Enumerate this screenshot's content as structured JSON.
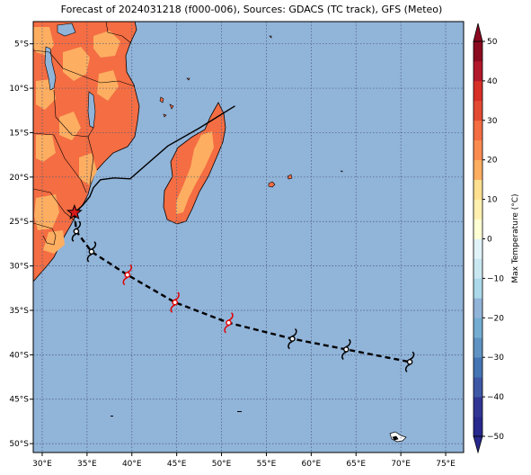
{
  "title": "Forecast of 2024031218 (f000-006), Sources: GDACS (TC track), GFS (Meteo)",
  "map": {
    "lon_range": [
      29,
      77
    ],
    "lat_range": [
      -51,
      -2.5
    ],
    "lon_ticks": [
      {
        "value": 30,
        "label": "30°E"
      },
      {
        "value": 35,
        "label": "35°E"
      },
      {
        "value": 40,
        "label": "40°E"
      },
      {
        "value": 45,
        "label": "45°E"
      },
      {
        "value": 50,
        "label": "50°E"
      },
      {
        "value": 55,
        "label": "55°E"
      },
      {
        "value": 60,
        "label": "60°E"
      },
      {
        "value": 65,
        "label": "65°E"
      },
      {
        "value": 70,
        "label": "70°E"
      },
      {
        "value": 75,
        "label": "75°E"
      }
    ],
    "lat_ticks": [
      {
        "value": -5,
        "label": "5°S"
      },
      {
        "value": -10,
        "label": "10°S"
      },
      {
        "value": -15,
        "label": "15°S"
      },
      {
        "value": -20,
        "label": "20°S"
      },
      {
        "value": -25,
        "label": "25°S"
      },
      {
        "value": -30,
        "label": "30°S"
      },
      {
        "value": -35,
        "label": "35°S"
      },
      {
        "value": -40,
        "label": "40°S"
      },
      {
        "value": -45,
        "label": "45°S"
      },
      {
        "value": -50,
        "label": "50°S"
      }
    ],
    "grid": "dotted",
    "ocean_color": "#91b4d9",
    "land_color_hot": "#f46d43",
    "land_color_warm": "#fdae61",
    "past_track": [
      [
        51.5,
        -12
      ],
      [
        47.5,
        -14.5
      ],
      [
        44,
        -16.5
      ],
      [
        39.8,
        -20.2
      ],
      [
        38,
        -20.1
      ],
      [
        36.5,
        -20.3
      ],
      [
        35.7,
        -21.2
      ],
      [
        35.3,
        -22.2
      ],
      [
        34.5,
        -23.2
      ],
      [
        33.6,
        -24.0
      ]
    ],
    "current_position": {
      "lon": 33.6,
      "lat": -24.0,
      "marker": "star-icon",
      "color": "#d7191c"
    },
    "forecast_track": [
      {
        "lon": 33.8,
        "lat": -26.1,
        "marker": "cyclone-icon",
        "color": "#000000"
      },
      {
        "lon": 35.5,
        "lat": -28.4,
        "marker": "cyclone-icon",
        "color": "#000000"
      },
      {
        "lon": 39.5,
        "lat": -31.0,
        "marker": "cyclone-icon",
        "color": "#e00000"
      },
      {
        "lon": 44.8,
        "lat": -34.1,
        "marker": "cyclone-icon",
        "color": "#e00000"
      },
      {
        "lon": 50.8,
        "lat": -36.4,
        "marker": "cyclone-icon",
        "color": "#e00000"
      },
      {
        "lon": 57.9,
        "lat": -38.2,
        "marker": "cyclone-icon",
        "color": "#000000"
      },
      {
        "lon": 63.9,
        "lat": -39.4,
        "marker": "cyclone-icon",
        "color": "#000000"
      },
      {
        "lon": 71.0,
        "lat": -40.8,
        "marker": "cyclone-icon",
        "color": "#000000"
      }
    ]
  },
  "colorbar": {
    "label": "Max Temperature (°C)",
    "min": -50,
    "max": 50,
    "ticks": [
      {
        "value": 50,
        "label": "50"
      },
      {
        "value": 40,
        "label": "40"
      },
      {
        "value": 30,
        "label": "30"
      },
      {
        "value": 20,
        "label": "20"
      },
      {
        "value": 10,
        "label": "10"
      },
      {
        "value": 0,
        "label": "0"
      },
      {
        "value": -10,
        "label": "−10"
      },
      {
        "value": -20,
        "label": "−20"
      },
      {
        "value": -30,
        "label": "−30"
      },
      {
        "value": -40,
        "label": "−40"
      },
      {
        "value": -50,
        "label": "−50"
      }
    ],
    "bands": [
      {
        "from": -50,
        "to": -45,
        "color": "#28288f"
      },
      {
        "from": -45,
        "to": -40,
        "color": "#313695"
      },
      {
        "from": -40,
        "to": -35,
        "color": "#3e58a6"
      },
      {
        "from": -35,
        "to": -30,
        "color": "#4575b4"
      },
      {
        "from": -30,
        "to": -25,
        "color": "#5f93c3"
      },
      {
        "from": -25,
        "to": -20,
        "color": "#74add1"
      },
      {
        "from": -20,
        "to": -15,
        "color": "#91b4d9"
      },
      {
        "from": -15,
        "to": -10,
        "color": "#abd9e9"
      },
      {
        "from": -10,
        "to": -5,
        "color": "#c9e7f1"
      },
      {
        "from": -5,
        "to": 0,
        "color": "#e0f3f8"
      },
      {
        "from": 0,
        "to": 5,
        "color": "#ffffd4"
      },
      {
        "from": 5,
        "to": 10,
        "color": "#fff0b0"
      },
      {
        "from": 10,
        "to": 15,
        "color": "#fee090"
      },
      {
        "from": 15,
        "to": 20,
        "color": "#fdae61"
      },
      {
        "from": 20,
        "to": 25,
        "color": "#fb8c50"
      },
      {
        "from": 25,
        "to": 30,
        "color": "#f46d43"
      },
      {
        "from": 30,
        "to": 35,
        "color": "#e34a33"
      },
      {
        "from": 35,
        "to": 40,
        "color": "#d73027"
      },
      {
        "from": 40,
        "to": 45,
        "color": "#b2182b"
      },
      {
        "from": 45,
        "to": 50,
        "color": "#8b0a20"
      }
    ]
  }
}
